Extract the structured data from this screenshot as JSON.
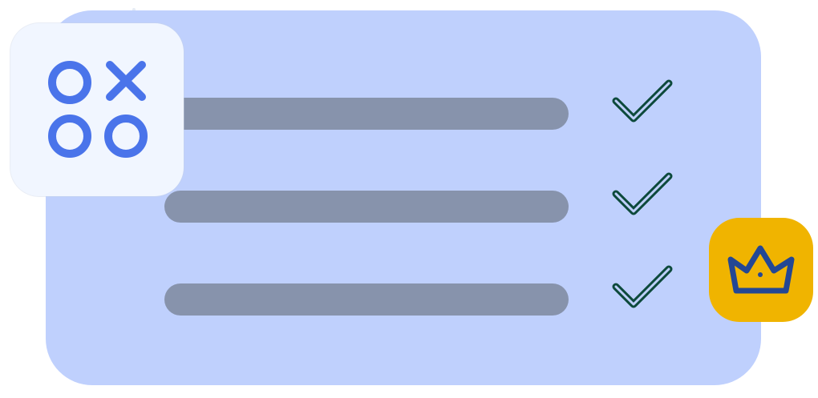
{
  "colors": {
    "card_background": "#bfd0fd",
    "bar": "#8793ac",
    "check": "#0d4a3c",
    "tile_background": "#f1f6ff",
    "tile_icon": "#4a74ea",
    "badge_background": "#f0b400",
    "crown": "#234794"
  },
  "rows": [
    {
      "icon": "check-icon",
      "status": "checked"
    },
    {
      "icon": "check-icon",
      "status": "checked"
    },
    {
      "icon": "check-icon",
      "status": "checked"
    }
  ],
  "tile": {
    "icon": "tic-tac-toe-icon"
  },
  "badge": {
    "icon": "crown-icon"
  }
}
